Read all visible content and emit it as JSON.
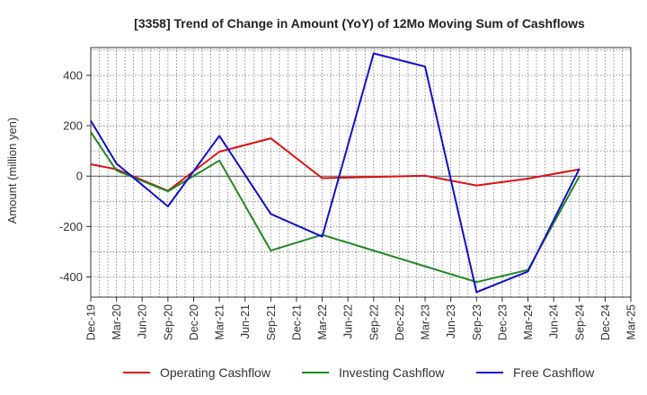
{
  "chart_data": {
    "type": "line",
    "title": "[3358]  Trend of Change in Amount (YoY) of 12Mo Moving Sum of Cashflows",
    "xlabel": "",
    "ylabel": "Amount (million yen)",
    "ylim": [
      -480,
      510
    ],
    "yticks": [
      400,
      200,
      0,
      -200,
      -400
    ],
    "yticklabels": [
      "400",
      "200",
      "0",
      "-200",
      "-400"
    ],
    "categories": [
      "Dec-19",
      "Mar-20",
      "Jun-20",
      "Sep-20",
      "Dec-20",
      "Mar-21",
      "Jun-21",
      "Sep-21",
      "Dec-21",
      "Mar-22",
      "Jun-22",
      "Sep-22",
      "Dec-22",
      "Mar-23",
      "Jun-23",
      "Sep-23",
      "Dec-23",
      "Mar-24",
      "Jun-24",
      "Sep-24",
      "Dec-24",
      "Mar-25"
    ],
    "grid": true,
    "legend_position": "bottom",
    "series": [
      {
        "name": "Operating Cashflow",
        "color": "#dd1111",
        "values": [
          47,
          27,
          null,
          -58,
          null,
          97,
          null,
          150,
          null,
          -8,
          null,
          null,
          null,
          2,
          null,
          -37,
          null,
          -10,
          null,
          27,
          null,
          null
        ]
      },
      {
        "name": "Investing Cashflow",
        "color": "#228822",
        "values": [
          175,
          22,
          null,
          -60,
          null,
          62,
          null,
          -295,
          null,
          -233,
          null,
          null,
          null,
          null,
          null,
          -420,
          null,
          -372,
          null,
          0,
          null,
          null
        ]
      },
      {
        "name": "Free Cashflow",
        "color": "#1111cc",
        "values": [
          220,
          50,
          null,
          -120,
          null,
          160,
          null,
          -150,
          null,
          -240,
          null,
          487,
          null,
          435,
          null,
          -460,
          null,
          -378,
          null,
          30,
          null,
          null
        ]
      }
    ]
  }
}
